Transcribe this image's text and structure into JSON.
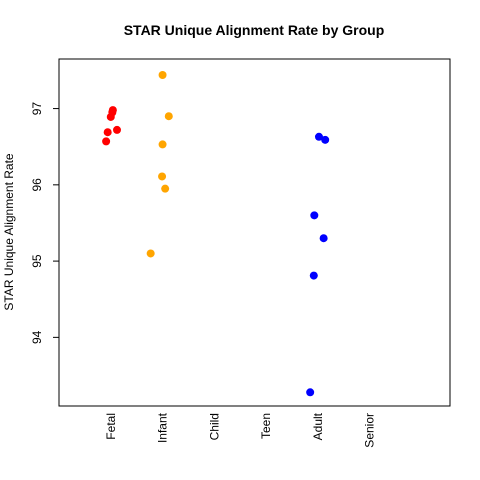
{
  "chart_data": {
    "type": "scatter",
    "title": "STAR Unique Alignment Rate by Group",
    "xlabel": "",
    "ylabel": "STAR Unique Alignment Rate",
    "categories": [
      "Fetal",
      "Infant",
      "Child",
      "Teen",
      "Adult",
      "Senior"
    ],
    "yticks": [
      94,
      95,
      96,
      97
    ],
    "ylim": [
      93.1,
      97.65
    ],
    "grid": false,
    "legend": "none",
    "series": [
      {
        "category": "Fetal",
        "color": "#ff0000",
        "points": [
          {
            "x": 1.04,
            "y": 96.98
          },
          {
            "x": 1.03,
            "y": 96.95
          },
          {
            "x": 1.0,
            "y": 96.89
          },
          {
            "x": 1.12,
            "y": 96.72
          },
          {
            "x": 0.94,
            "y": 96.69
          },
          {
            "x": 0.91,
            "y": 96.57
          }
        ]
      },
      {
        "category": "Infant",
        "color": "#ffa500",
        "points": [
          {
            "x": 2.0,
            "y": 97.44
          },
          {
            "x": 2.12,
            "y": 96.9
          },
          {
            "x": 2.0,
            "y": 96.53
          },
          {
            "x": 1.99,
            "y": 96.11
          },
          {
            "x": 2.05,
            "y": 95.95
          },
          {
            "x": 1.77,
            "y": 95.1
          }
        ]
      },
      {
        "category": "Child",
        "color": "#00aa00",
        "points": []
      },
      {
        "category": "Teen",
        "color": "#8a2be2",
        "points": []
      },
      {
        "category": "Adult",
        "color": "#0000ff",
        "points": [
          {
            "x": 5.02,
            "y": 96.63
          },
          {
            "x": 5.14,
            "y": 96.59
          },
          {
            "x": 4.93,
            "y": 95.6
          },
          {
            "x": 5.11,
            "y": 95.3
          },
          {
            "x": 4.92,
            "y": 94.81
          },
          {
            "x": 4.85,
            "y": 93.28
          }
        ]
      },
      {
        "category": "Senior",
        "color": "#000000",
        "points": []
      }
    ]
  }
}
